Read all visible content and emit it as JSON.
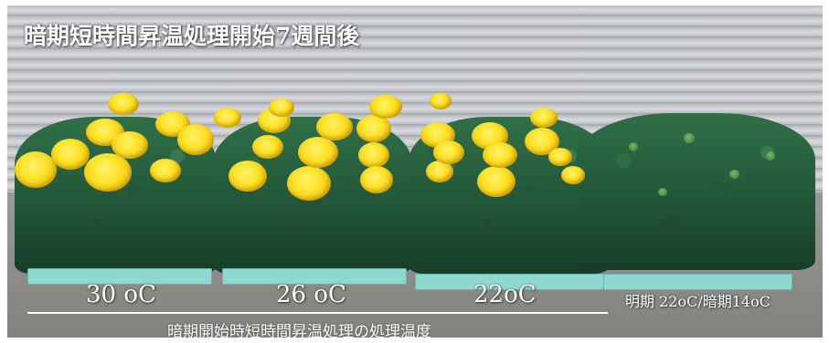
{
  "title": "暗期短時間昇温処理開始7週間後",
  "groups": [
    {
      "label": "30 oC"
    },
    {
      "label": "26 oC"
    },
    {
      "label": "22oC"
    },
    {
      "label": "明期 22oC/暗期14oC"
    }
  ],
  "axis_caption": "暗期開始時短時間昇温処理の処理温度",
  "colors": {
    "flower": "#ffe22a",
    "foliage": "#2f7048",
    "tray": "#8fd8cf",
    "shutter": "#c5c7cb",
    "text": "#ffffff"
  }
}
